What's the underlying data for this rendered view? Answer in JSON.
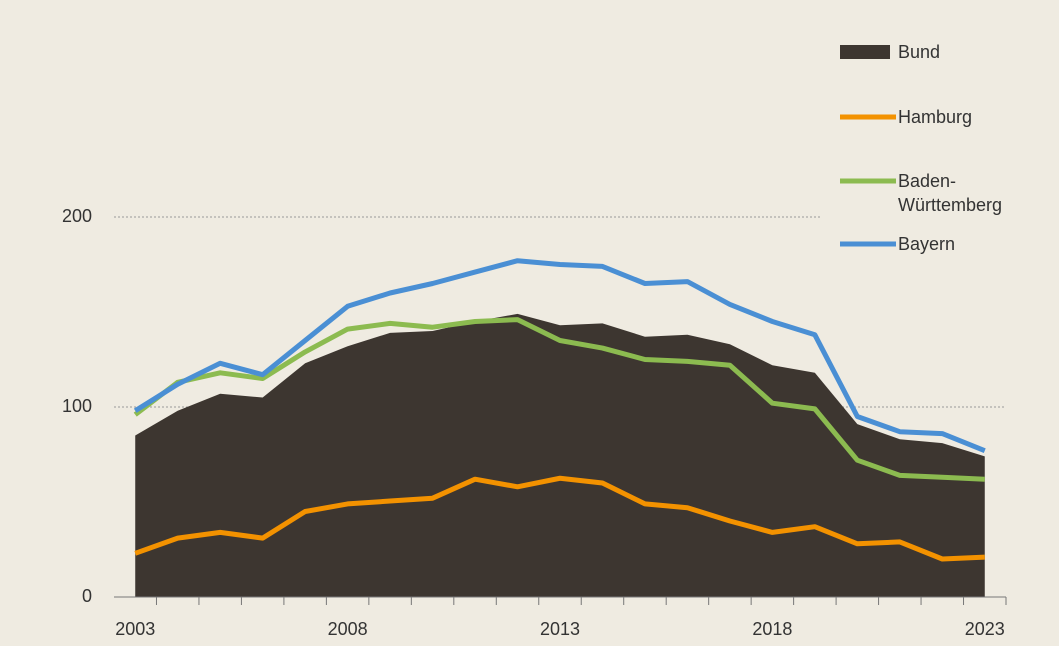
{
  "chart_data": {
    "type": "line",
    "x": [
      2003,
      2004,
      2005,
      2006,
      2007,
      2008,
      2009,
      2010,
      2011,
      2012,
      2013,
      2014,
      2015,
      2016,
      2017,
      2018,
      2019,
      2020,
      2021,
      2022,
      2023
    ],
    "series": [
      {
        "name": "Bund",
        "type": "area",
        "color": "#3d3630",
        "values": [
          85,
          98,
          107,
          105,
          123,
          132,
          139,
          140,
          145,
          149,
          143,
          144,
          137,
          138,
          133,
          122,
          118,
          91,
          83,
          81,
          74
        ]
      },
      {
        "name": "Hamburg",
        "type": "line",
        "color": "#f39200",
        "values": [
          23,
          31,
          34,
          31,
          45,
          49,
          50.5,
          52,
          62,
          58,
          62.5,
          60,
          49,
          47,
          40,
          34,
          37,
          28,
          29,
          20,
          21
        ]
      },
      {
        "name": "Baden-Württemberg",
        "type": "line",
        "color": "#8cbb50",
        "values": [
          96,
          113,
          118,
          115,
          129,
          141,
          144,
          142,
          145,
          146,
          135,
          131,
          125,
          124,
          122,
          102,
          99,
          72,
          64,
          63,
          62
        ]
      },
      {
        "name": "Bayern",
        "type": "line",
        "color": "#4a8fd4",
        "values": [
          98,
          112,
          123,
          117,
          135,
          153,
          160,
          165,
          171,
          177,
          175,
          174,
          165,
          166,
          154,
          145,
          138,
          95,
          87,
          86,
          77
        ]
      }
    ],
    "xlim": [
      2002.5,
      2023.5
    ],
    "xticks": [
      2003,
      2008,
      2013,
      2018,
      2023
    ],
    "ylim": [
      0,
      200
    ],
    "yticks": [
      0,
      100,
      200
    ],
    "grid": true
  }
}
